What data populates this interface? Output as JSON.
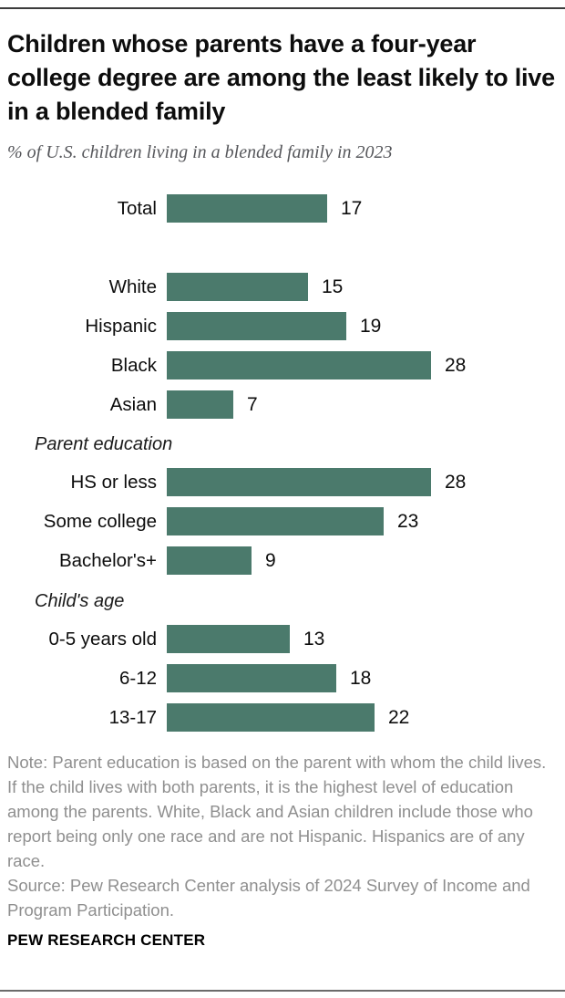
{
  "header": {
    "title": "Children whose parents have a four-year college degree are among the least likely to live in a blended family",
    "subtitle": "% of U.S. children living in a blended family in 2023"
  },
  "chart_data": {
    "type": "bar",
    "orientation": "horizontal",
    "unit": "% of U.S. children",
    "bar_color": "#4b7a6c",
    "value_range": [
      0,
      28
    ],
    "grid": false,
    "legend": false,
    "groups": [
      {
        "header": "",
        "rows": [
          {
            "label": "Total",
            "value": 17
          }
        ]
      },
      {
        "header": "",
        "rows": [
          {
            "label": "White",
            "value": 15
          },
          {
            "label": "Hispanic",
            "value": 19
          },
          {
            "label": "Black",
            "value": 28
          },
          {
            "label": "Asian",
            "value": 7
          }
        ]
      },
      {
        "header": "Parent education",
        "rows": [
          {
            "label": "HS or less",
            "value": 28
          },
          {
            "label": "Some college",
            "value": 23
          },
          {
            "label": "Bachelor's+",
            "value": 9
          }
        ]
      },
      {
        "header": "Child's age",
        "rows": [
          {
            "label": "0-5 years old",
            "value": 13
          },
          {
            "label": "6-12",
            "value": 18
          },
          {
            "label": "13-17",
            "value": 22
          }
        ]
      }
    ]
  },
  "footer": {
    "note": "Note: Parent education is based on the parent with whom the child lives. If the child lives with both parents, it is the highest level of education among the parents. White, Black and Asian children include those who report being only one race and are not Hispanic. Hispanics are of any race.",
    "source": "Source: Pew Research Center analysis of 2024 Survey of Income and Program Participation.",
    "brand": "PEW RESEARCH CENTER"
  }
}
